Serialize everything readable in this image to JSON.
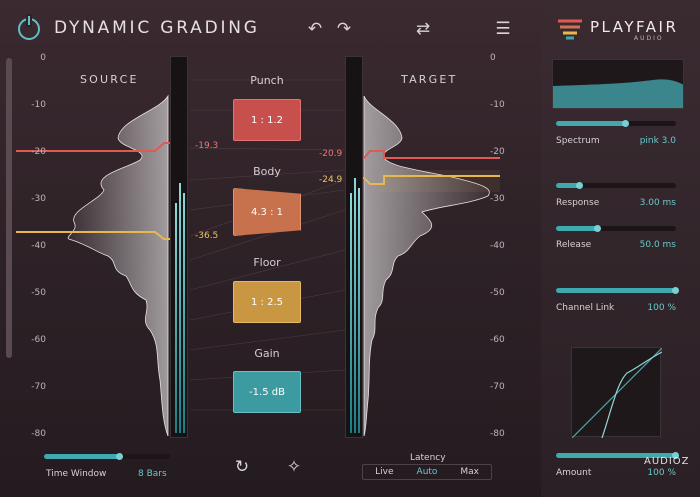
{
  "app": {
    "title": "DYNAMIC GRADING"
  },
  "toolbar": {
    "undo_icon": "undo-icon",
    "redo_icon": "redo-icon",
    "swap_icon": "swap-icon",
    "menu_icon": "menu-icon",
    "power_icon": "power-icon"
  },
  "brand": {
    "name": "PLAYFAIR",
    "sub": "AUDIO"
  },
  "source": {
    "label": "SOURCE",
    "marker_upper": "-19.3",
    "marker_lower": "-36.5"
  },
  "target": {
    "label": "TARGET",
    "marker_upper": "-20.9",
    "marker_lower": "-24.9"
  },
  "scale": {
    "left_ticks": [
      "0",
      "-10",
      "-20",
      "-30",
      "-40",
      "-50",
      "-60",
      "-70",
      "-80"
    ],
    "right_ticks": [
      "0",
      "-10",
      "-20",
      "-30",
      "-40",
      "-50",
      "-60",
      "-70",
      "-80"
    ]
  },
  "grading": {
    "punch": {
      "label": "Punch",
      "value": "1 : 1.2",
      "color": "#d0514f"
    },
    "body": {
      "label": "Body",
      "value": "4.3 : 1",
      "color": "#cc734f"
    },
    "floor": {
      "label": "Floor",
      "value": "1 : 2.5",
      "color": "#cb9a45"
    },
    "gain": {
      "label": "Gain",
      "value": "-1.5 dB",
      "color": "#3e9aa1"
    }
  },
  "time_window": {
    "label": "Time Window",
    "value": "8 Bars",
    "level": 0.6
  },
  "latency": {
    "label": "Latency",
    "options": [
      "Live",
      "Auto",
      "Max"
    ],
    "selected": "Auto"
  },
  "right_panel": {
    "spectrum": {
      "label": "Spectrum",
      "value": "pink 3.0",
      "level": 0.58
    },
    "response": {
      "label": "Response",
      "value": "3.00 ms",
      "level": 0.2
    },
    "release": {
      "label": "Release",
      "value": "50.0 ms",
      "level": 0.35
    },
    "channel_link": {
      "label": "Channel Link",
      "value": "100 %",
      "level": 1.0
    },
    "amount": {
      "label": "Amount",
      "value": "100 %",
      "level": 1.0
    }
  },
  "watermark": {
    "text": "AUDIOZ"
  },
  "colors": {
    "accent": "#3fa9b0",
    "punch": "#e05a55",
    "floor": "#e8b84e"
  }
}
